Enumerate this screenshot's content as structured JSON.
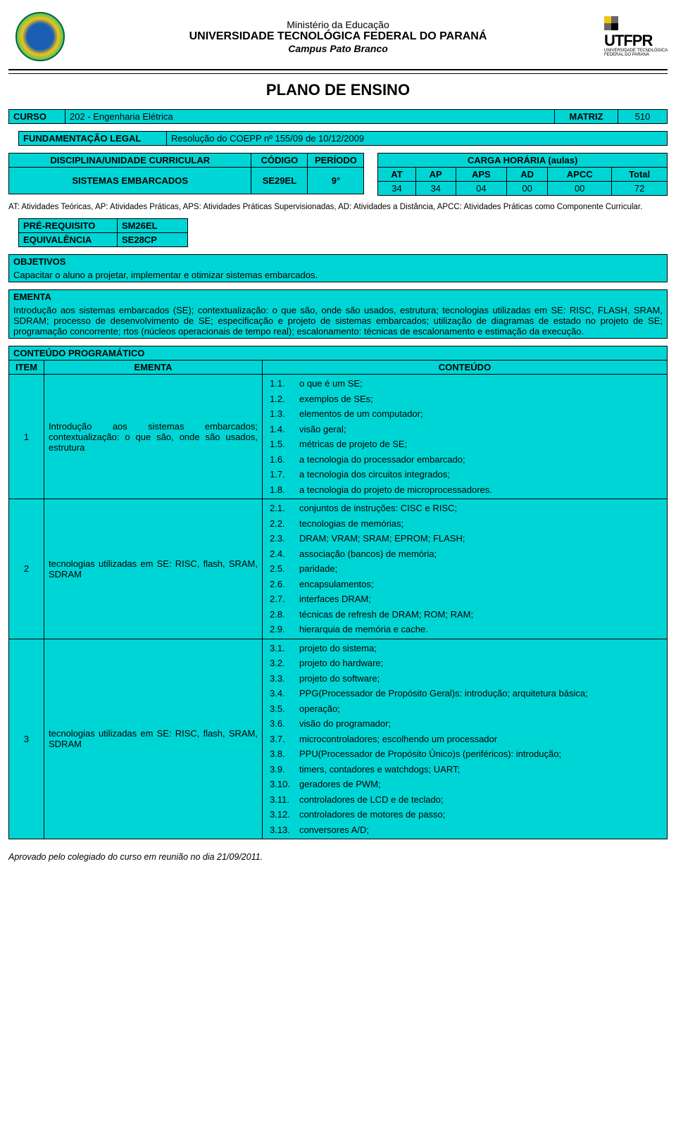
{
  "header": {
    "line1": "Ministério da Educação",
    "line2": "UNIVERSIDADE TECNOLÓGICA FEDERAL DO PARANÁ",
    "line3": "Campus Pato Branco",
    "logo_right_text": "UTFPR",
    "logo_right_sub": "UNIVERSIDADE TECNOLÓGICA FEDERAL DO PARANÁ"
  },
  "title": "PLANO DE ENSINO",
  "curso": {
    "label": "CURSO",
    "value": "202 - Engenharia Elétrica",
    "matriz_label": "MATRIZ",
    "matriz_value": "510"
  },
  "fund": {
    "label": "FUNDAMENTAÇÃO LEGAL",
    "value": "Resolução do COEPP nº 155/09 de 10/12/2009"
  },
  "disc": {
    "label": "DISCIPLINA/UNIDADE CURRICULAR",
    "codigo_label": "CÓDIGO",
    "periodo_label": "PERÍODO",
    "name": "SISTEMAS EMBARCADOS",
    "codigo": "SE29EL",
    "periodo": "9°"
  },
  "carga": {
    "title": "CARGA HORÁRIA (aulas)",
    "cols": [
      "AT",
      "AP",
      "APS",
      "AD",
      "APCC",
      "Total"
    ],
    "vals": [
      "34",
      "34",
      "04",
      "00",
      "00",
      "72"
    ]
  },
  "legend": "AT: Atividades Teóricas, AP: Atividades Práticas, APS: Atividades Práticas Supervisionadas, AD: Atividades a Distância, APCC: Atividades Práticas como Componente Curricular.",
  "prereq": {
    "label": "PRÉ-REQUISITO",
    "value": "SM26EL"
  },
  "equiv": {
    "label": "EQUIVALÊNCIA",
    "value": "SE28CP"
  },
  "objetivos": {
    "label": "OBJETIVOS",
    "text": "Capacitar o aluno a projetar, implementar e otimizar sistemas embarcados."
  },
  "ementa": {
    "label": "EMENTA",
    "text": "Introdução aos sistemas embarcados (SE); contextualização: o que são, onde são usados, estrutura; tecnologias utilizadas em SE: RISC, FLASH, SRAM, SDRAM; processo de desenvolvimento de SE; especificação e projeto de sistemas embarcados; utilização de diagramas de estado no projeto de SE; programação concorrente; rtos (núcleos operacionais de tempo real); escalonamento: técnicas de escalonamento e estimação da execução."
  },
  "prog": {
    "title": "CONTEÚDO PROGRAMÁTICO",
    "cols": [
      "ITEM",
      "EMENTA",
      "CONTEÚDO"
    ],
    "rows": [
      {
        "item": "1",
        "ementa": "Introdução aos sistemas embarcados; contextualização: o que são, onde são usados, estrutura",
        "content": [
          [
            "1.1.",
            "o que é um SE;"
          ],
          [
            "1.2.",
            "exemplos de SEs;"
          ],
          [
            "1.3.",
            "elementos de um computador;"
          ],
          [
            "1.4.",
            "visão geral;"
          ],
          [
            "1.5.",
            "métricas de projeto de SE;"
          ],
          [
            "1.6.",
            "a tecnologia do processador embarcado;"
          ],
          [
            "1.7.",
            "a tecnologia dos circuitos integrados;"
          ],
          [
            "1.8.",
            "a tecnologia do projeto de microprocessadores."
          ]
        ]
      },
      {
        "item": "2",
        "ementa": "tecnologias utilizadas em SE: RISC, flash, SRAM, SDRAM",
        "content": [
          [
            "2.1.",
            "conjuntos de instruções: CISC e RISC;"
          ],
          [
            "2.2.",
            "tecnologias de memórias;"
          ],
          [
            "2.3.",
            "DRAM; VRAM; SRAM; EPROM; FLASH;"
          ],
          [
            "2.4.",
            "associação (bancos) de memória;"
          ],
          [
            "2.5.",
            "paridade;"
          ],
          [
            "2.6.",
            "encapsulamentos;"
          ],
          [
            "2.7.",
            "interfaces DRAM;"
          ],
          [
            "2.8.",
            "técnicas de refresh de DRAM; ROM; RAM;"
          ],
          [
            "2.9.",
            "hierarquia de memória e cache."
          ]
        ]
      },
      {
        "item": "3",
        "ementa": "tecnologias utilizadas em SE: RISC,\nflash, SRAM, SDRAM",
        "content": [
          [
            "3.1.",
            "projeto do sistema;"
          ],
          [
            "3.2.",
            "projeto do hardware;"
          ],
          [
            "3.3.",
            "projeto do software;"
          ],
          [
            "3.4.",
            "PPG(Processador de Propósito Geral)s: introdução; arquitetura básica;"
          ],
          [
            "3.5.",
            "operação;"
          ],
          [
            "3.6.",
            "visão do programador;"
          ],
          [
            "3.7.",
            "microcontroladores; escolhendo um processador"
          ],
          [
            "3.8.",
            "PPU(Processador de Propósito Único)s (periféricos): introdução;"
          ],
          [
            "3.9.",
            "timers, contadores e watchdogs; UART;"
          ],
          [
            "3.10.",
            "geradores de PWM;"
          ],
          [
            "3.11.",
            "controladores de LCD e de teclado;"
          ],
          [
            "3.12.",
            "controladores de motores de passo;"
          ],
          [
            "3.13.",
            "conversores A/D;"
          ]
        ]
      }
    ]
  },
  "footer": "Aprovado pelo colegiado do curso em reunião no dia 21/09/2011.",
  "colors": {
    "cyan": "#00d5d5",
    "border": "#000000",
    "bg": "#ffffff"
  }
}
